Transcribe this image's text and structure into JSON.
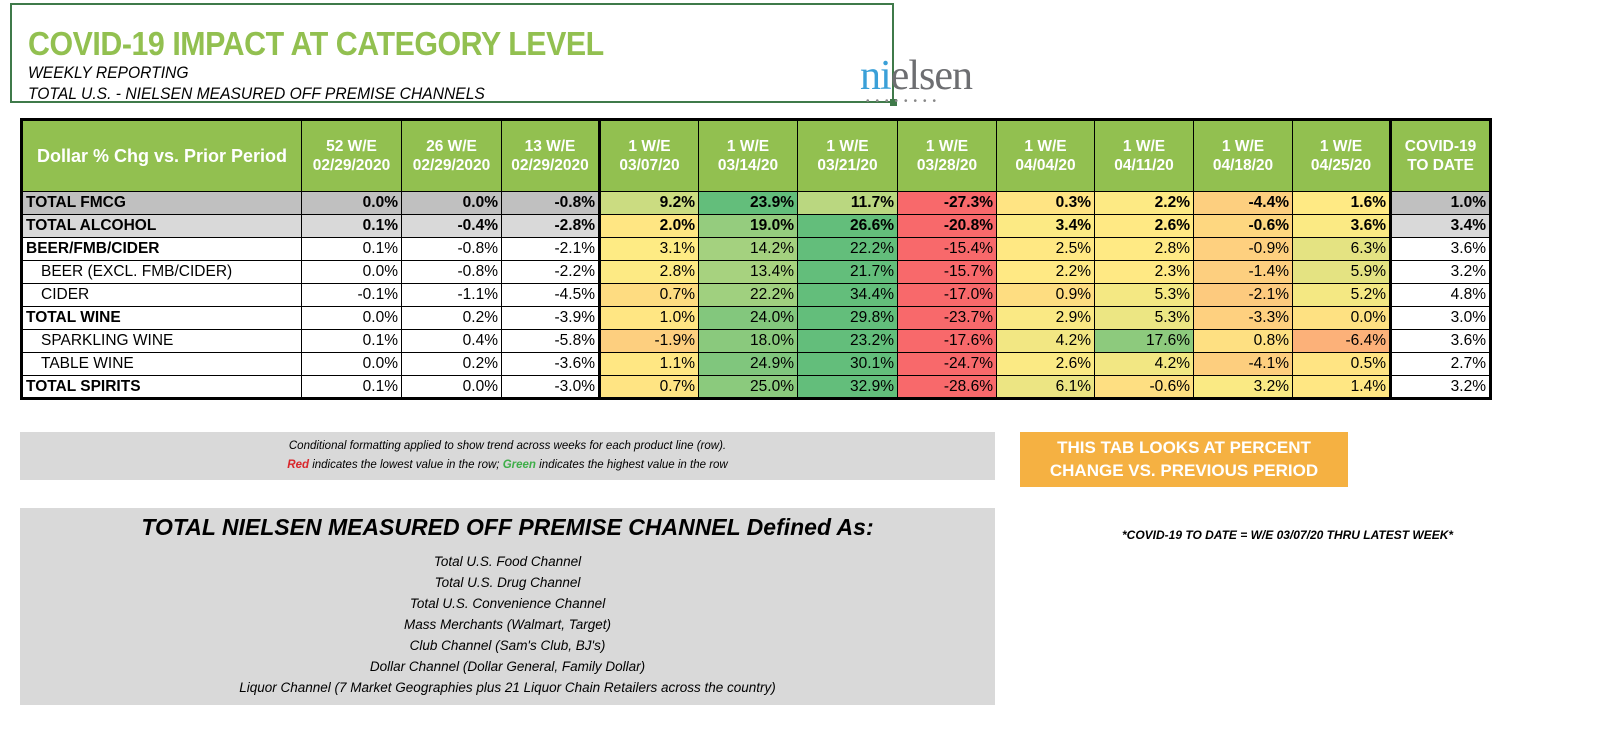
{
  "header": {
    "title": "COVID-19 IMPACT AT CATEGORY LEVEL",
    "subtitle1": "WEEKLY REPORTING",
    "subtitle2": "TOTAL U.S. - NIELSEN MEASURED OFF PREMISE CHANNELS",
    "logo": "nielsen"
  },
  "table": {
    "columns": [
      "Dollar % Chg vs. Prior Period",
      "52 W/E 02/29/2020",
      "26 W/E 02/29/2020",
      "13 W/E 02/29/2020",
      "1 W/E 03/07/20",
      "1 W/E 03/14/20",
      "1 W/E 03/21/20",
      "1 W/E 03/28/20",
      "1 W/E 04/04/20",
      "1 W/E 04/11/20",
      "1 W/E 04/18/20",
      "1 W/E 04/25/20",
      "COVID-19 TO DATE"
    ],
    "rows": [
      {
        "name": "TOTAL FMCG",
        "style": "bold",
        "bg": "#c0c0c0",
        "values": [
          "0.0%",
          "0.0%",
          "-0.8%",
          "9.2%",
          "23.9%",
          "11.7%",
          "-27.3%",
          "0.3%",
          "2.2%",
          "-4.4%",
          "1.6%",
          "1.0%"
        ]
      },
      {
        "name": "TOTAL ALCOHOL",
        "style": "bold",
        "bg": "#d9d9d9",
        "values": [
          "0.1%",
          "-0.4%",
          "-2.8%",
          "2.0%",
          "19.0%",
          "26.6%",
          "-20.8%",
          "3.4%",
          "2.6%",
          "-0.6%",
          "3.6%",
          "3.4%"
        ]
      },
      {
        "name": "BEER/FMB/CIDER",
        "style": "boldname",
        "bg": "#ffffff",
        "values": [
          "0.1%",
          "-0.8%",
          "-2.1%",
          "3.1%",
          "14.2%",
          "22.2%",
          "-15.4%",
          "2.5%",
          "2.8%",
          "-0.9%",
          "6.3%",
          "3.6%"
        ]
      },
      {
        "name": "BEER (EXCL. FMB/CIDER)",
        "style": "indent",
        "bg": "#ffffff",
        "values": [
          "0.0%",
          "-0.8%",
          "-2.2%",
          "2.8%",
          "13.4%",
          "21.7%",
          "-15.7%",
          "2.2%",
          "2.3%",
          "-1.4%",
          "5.9%",
          "3.2%"
        ]
      },
      {
        "name": "CIDER",
        "style": "indent",
        "bg": "#ffffff",
        "values": [
          "-0.1%",
          "-1.1%",
          "-4.5%",
          "0.7%",
          "22.2%",
          "34.4%",
          "-17.0%",
          "0.9%",
          "5.3%",
          "-2.1%",
          "5.2%",
          "4.8%"
        ]
      },
      {
        "name": "TOTAL WINE",
        "style": "boldname",
        "bg": "#ffffff",
        "values": [
          "0.0%",
          "0.2%",
          "-3.9%",
          "1.0%",
          "24.0%",
          "29.8%",
          "-23.7%",
          "2.9%",
          "5.3%",
          "-3.3%",
          "0.0%",
          "3.0%"
        ]
      },
      {
        "name": "SPARKLING WINE",
        "style": "indent",
        "bg": "#ffffff",
        "values": [
          "0.1%",
          "0.4%",
          "-5.8%",
          "-1.9%",
          "18.0%",
          "23.2%",
          "-17.6%",
          "4.2%",
          "17.6%",
          "0.8%",
          "-6.4%",
          "3.6%"
        ]
      },
      {
        "name": "TABLE WINE",
        "style": "indent",
        "bg": "#ffffff",
        "values": [
          "0.0%",
          "0.2%",
          "-3.6%",
          "1.1%",
          "24.9%",
          "30.1%",
          "-24.7%",
          "2.6%",
          "4.2%",
          "-4.1%",
          "0.5%",
          "2.7%"
        ]
      },
      {
        "name": "TOTAL SPIRITS",
        "style": "boldname",
        "bg": "#ffffff",
        "values": [
          "0.1%",
          "0.0%",
          "-3.0%",
          "0.7%",
          "25.0%",
          "32.9%",
          "-28.6%",
          "6.1%",
          "-0.6%",
          "3.2%",
          "1.4%",
          "3.2%"
        ]
      }
    ]
  },
  "colors": {
    "header_green": "#92c050",
    "scale_low": "#f8696b",
    "scale_mid": "#ffeb84",
    "scale_high": "#63be7b",
    "accent_orange": "#f5b142"
  },
  "legend": {
    "line1": "Conditional formatting applied to show trend across weeks for each product line (row).",
    "red": "Red",
    "line2a": " indicates the lowest value in the row; ",
    "green": "Green",
    "line2b": " indicates the highest value in the row"
  },
  "callout": "THIS TAB LOOKS AT PERCENT CHANGE VS. PREVIOUS PERIOD",
  "definition": {
    "title": "TOTAL NIELSEN MEASURED OFF PREMISE CHANNEL Defined As:",
    "items": [
      "Total U.S. Food Channel",
      "Total U.S. Drug Channel",
      "Total U.S. Convenience Channel",
      "Mass Merchants (Walmart, Target)",
      "Club Channel (Sam's Club, BJ's)",
      "Dollar Channel (Dollar General, Family Dollar)",
      "Liquor Channel (7 Market Geographies plus 21 Liquor Chain Retailers across the country)"
    ]
  },
  "footnote": "*COVID-19 TO DATE = W/E 03/07/20 THRU LATEST WEEK*"
}
